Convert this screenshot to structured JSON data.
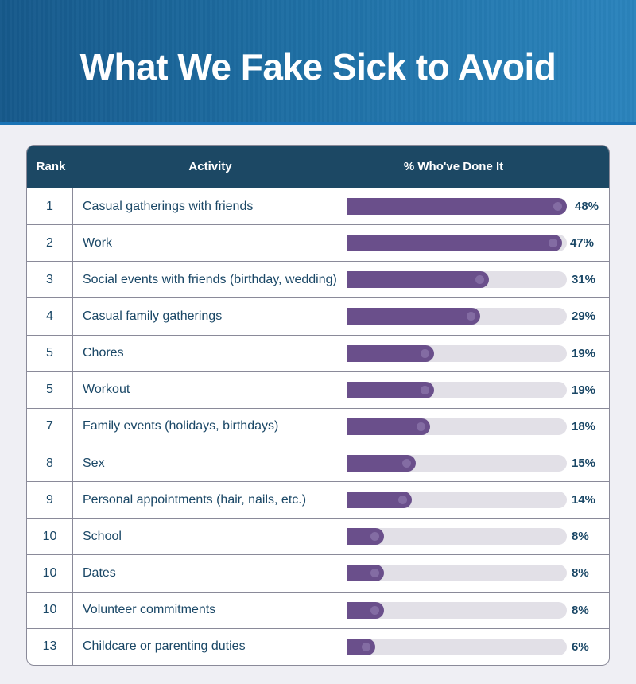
{
  "header": {
    "title": "What We Fake Sick to Avoid"
  },
  "table": {
    "columns": [
      "Rank",
      "Activity",
      "% Who've Done It"
    ],
    "rows": [
      {
        "rank": "1",
        "activity": "Casual gatherings with friends",
        "pct_label": "48%",
        "value": 48
      },
      {
        "rank": "2",
        "activity": "Work",
        "pct_label": "47%",
        "value": 47
      },
      {
        "rank": "3",
        "activity": "Social events with friends (birthday, wedding)",
        "pct_label": "31%",
        "value": 31
      },
      {
        "rank": "4",
        "activity": "Casual family gatherings",
        "pct_label": "29%",
        "value": 29
      },
      {
        "rank": "5",
        "activity": "Chores",
        "pct_label": "19%",
        "value": 19
      },
      {
        "rank": "5",
        "activity": "Workout",
        "pct_label": "19%",
        "value": 19
      },
      {
        "rank": "7",
        "activity": "Family events (holidays, birthdays)",
        "pct_label": "18%",
        "value": 18
      },
      {
        "rank": "8",
        "activity": "Sex",
        "pct_label": "15%",
        "value": 15
      },
      {
        "rank": "9",
        "activity": "Personal appointments (hair, nails, etc.)",
        "pct_label": "14%",
        "value": 14
      },
      {
        "rank": "10",
        "activity": "School",
        "pct_label": "8%",
        "value": 8
      },
      {
        "rank": "10",
        "activity": "Dates",
        "pct_label": "8%",
        "value": 8
      },
      {
        "rank": "10",
        "activity": "Volunteer commitments",
        "pct_label": "8%",
        "value": 8
      },
      {
        "rank": "13",
        "activity": "Childcare or parenting duties",
        "pct_label": "6%",
        "value": 6
      }
    ]
  },
  "colors": {
    "header_bg": "#1c4864",
    "bar": "#6a4f8b",
    "track": "#e2e0e7",
    "text": "#1a4766",
    "banner": "#1e6ea3"
  },
  "chart_data": {
    "type": "bar",
    "orientation": "horizontal",
    "title": "What We Fake Sick to Avoid",
    "xlabel": "% Who've Done It",
    "ylabel": "Activity",
    "categories": [
      "Casual gatherings with friends",
      "Work",
      "Social events with friends (birthday, wedding)",
      "Casual family gatherings",
      "Chores",
      "Workout",
      "Family events (holidays, birthdays)",
      "Sex",
      "Personal appointments (hair, nails, etc.)",
      "School",
      "Dates",
      "Volunteer commitments",
      "Childcare or parenting duties"
    ],
    "ranks": [
      1,
      2,
      3,
      4,
      5,
      5,
      7,
      8,
      9,
      10,
      10,
      10,
      13
    ],
    "values": [
      48,
      47,
      31,
      29,
      19,
      19,
      18,
      15,
      14,
      8,
      8,
      8,
      6
    ],
    "unit": "%",
    "xlim": [
      0,
      48
    ]
  }
}
